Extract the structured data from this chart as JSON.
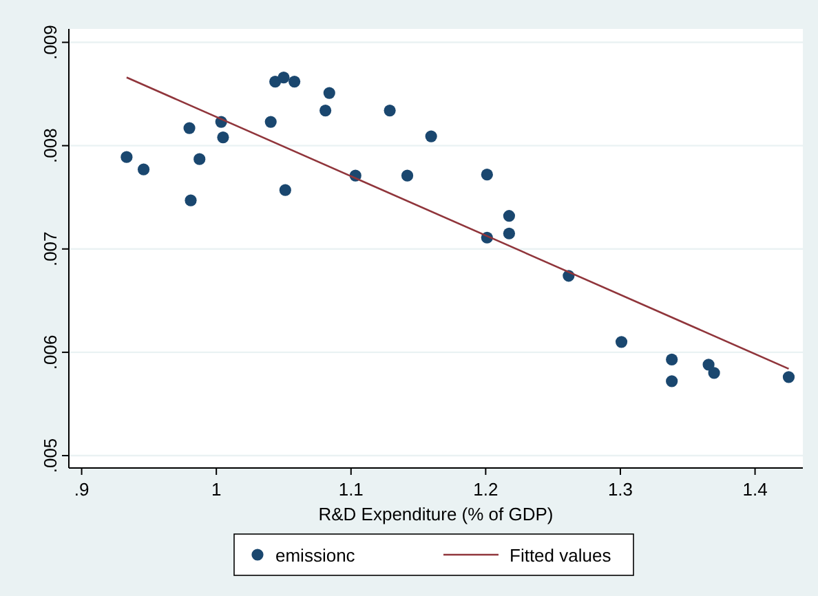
{
  "chart_data": {
    "type": "scatter",
    "xlabel": "R&D Expenditure (% of GDP)",
    "xlim": [
      0.8905,
      1.4355
    ],
    "ylim": [
      0.00488,
      0.00913
    ],
    "xticks": [
      {
        "value": 0.9,
        "label": ".9"
      },
      1,
      1.1,
      1.2,
      1.3,
      1.4
    ],
    "yticks": [
      {
        "value": 0.005,
        "label": ".005"
      },
      {
        "value": 0.006,
        "label": ".006"
      },
      {
        "value": 0.007,
        "label": ".007"
      },
      {
        "value": 0.008,
        "label": ".008"
      },
      {
        "value": 0.009,
        "label": ".009"
      }
    ],
    "grid": "y",
    "legend": "bottom",
    "marker": "circle",
    "series": [
      {
        "name": "emissionc",
        "color": "#1a476f",
        "x": [
          0.9334,
          0.946,
          0.98,
          0.981,
          0.9875,
          1.0036,
          1.005,
          1.0404,
          1.0437,
          1.05,
          1.0512,
          1.058,
          1.081,
          1.0839,
          1.1033,
          1.1288,
          1.1418,
          1.1595,
          1.201,
          1.201,
          1.2174,
          1.2174,
          1.2616,
          1.3008,
          1.3382,
          1.3382,
          1.3655,
          1.3696,
          1.425
        ],
        "values": [
          0.00789,
          0.00777,
          0.00817,
          0.00747,
          0.00787,
          0.00823,
          0.00808,
          0.00823,
          0.00862,
          0.00866,
          0.00757,
          0.00862,
          0.00834,
          0.00851,
          0.00771,
          0.00834,
          0.00771,
          0.00809,
          0.00772,
          0.00711,
          0.00732,
          0.00715,
          0.00674,
          0.0061,
          0.00593,
          0.00572,
          0.00588,
          0.0058,
          0.00576
        ]
      },
      {
        "name": "Fitted values",
        "type": "line",
        "color": "#90353b",
        "marker": "none",
        "x": [
          0.9334,
          1.425
        ],
        "values": [
          0.00866,
          0.00584
        ]
      }
    ]
  }
}
